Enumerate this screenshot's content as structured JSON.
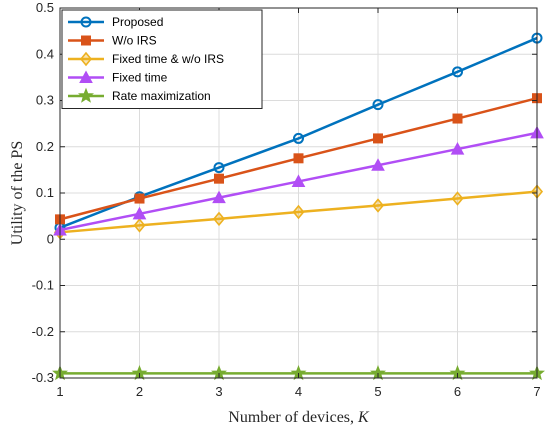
{
  "chart_data": {
    "type": "line",
    "x": [
      1,
      2,
      3,
      4,
      5,
      6,
      7
    ],
    "xlabel": "Number of devices, ",
    "xlabel_var": "K",
    "ylabel": "Utility of the PS",
    "xlim": [
      1,
      7
    ],
    "ylim": [
      -0.3,
      0.5
    ],
    "xticks": [
      "1",
      "2",
      "3",
      "4",
      "5",
      "6",
      "7"
    ],
    "yticks": [
      "-0.3",
      "-0.2",
      "-0.1",
      "0",
      "0.1",
      "0.2",
      "0.3",
      "0.4",
      "0.5"
    ],
    "grid": true,
    "legend_position": "top-left",
    "series": [
      {
        "name": "Proposed",
        "color": "#0072BD",
        "marker": "circle",
        "values": [
          0.025,
          0.092,
          0.155,
          0.218,
          0.291,
          0.362,
          0.435
        ]
      },
      {
        "name": "W/o IRS",
        "color": "#D95319",
        "marker": "square",
        "values": [
          0.043,
          0.088,
          0.131,
          0.175,
          0.218,
          0.261,
          0.305
        ]
      },
      {
        "name": "Fixed time & w/o IRS",
        "color": "#EDB120",
        "marker": "diamond",
        "values": [
          0.015,
          0.03,
          0.044,
          0.059,
          0.073,
          0.088,
          0.103
        ]
      },
      {
        "name": "Fixed time",
        "color": "#B14EF5",
        "marker": "triangle",
        "values": [
          0.02,
          0.055,
          0.09,
          0.125,
          0.16,
          0.195,
          0.23
        ]
      },
      {
        "name": "Rate maximization",
        "color": "#77AC30",
        "marker": "star",
        "values": [
          -0.29,
          -0.29,
          -0.29,
          -0.29,
          -0.29,
          -0.29,
          -0.29
        ]
      }
    ]
  }
}
